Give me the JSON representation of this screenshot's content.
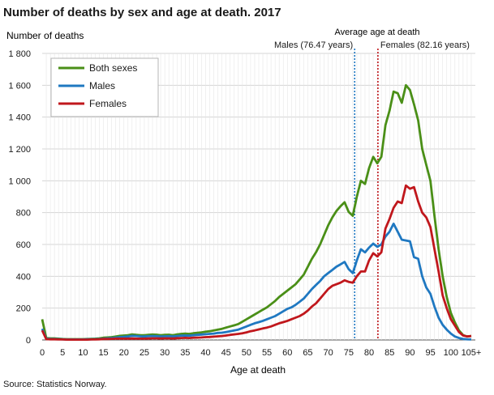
{
  "title": "Number of deaths by sex and age at death. 2017",
  "source": "Source: Statistics Norway.",
  "chart_data": {
    "type": "line",
    "title": "Number of deaths by sex and age at death. 2017",
    "ylabel": "Number of deaths",
    "xlabel": "Age at death",
    "xlim": [
      0,
      106
    ],
    "ylim": [
      0,
      1800
    ],
    "grid": true,
    "legend": "top-left",
    "x_ticks": [
      0,
      5,
      10,
      15,
      20,
      25,
      30,
      35,
      40,
      45,
      50,
      55,
      60,
      65,
      70,
      75,
      80,
      85,
      90,
      95,
      100,
      105
    ],
    "x_tick_labels": [
      "0",
      "5",
      "10",
      "15",
      "20",
      "25",
      "30",
      "35",
      "40",
      "45",
      "50",
      "55",
      "60",
      "65",
      "70",
      "75",
      "80",
      "85",
      "90",
      "95",
      "100",
      "105+"
    ],
    "y_ticks": [
      0,
      200,
      400,
      600,
      800,
      1000,
      1200,
      1400,
      1600,
      1800
    ],
    "y_tick_labels": [
      "0",
      "200",
      "400",
      "600",
      "800",
      "1 000",
      "1 200",
      "1 400",
      "1 600",
      "1 800"
    ],
    "series": [
      {
        "name": "Both sexes",
        "color": "#4a8f17",
        "points": [
          [
            0,
            130
          ],
          [
            1,
            12
          ],
          [
            2,
            10
          ],
          [
            3,
            10
          ],
          [
            4,
            8
          ],
          [
            5,
            6
          ],
          [
            6,
            5
          ],
          [
            7,
            5
          ],
          [
            8,
            5
          ],
          [
            9,
            5
          ],
          [
            10,
            5
          ],
          [
            11,
            6
          ],
          [
            12,
            7
          ],
          [
            13,
            8
          ],
          [
            14,
            10
          ],
          [
            15,
            14
          ],
          [
            16,
            16
          ],
          [
            17,
            18
          ],
          [
            18,
            22
          ],
          [
            19,
            26
          ],
          [
            20,
            28
          ],
          [
            21,
            30
          ],
          [
            22,
            35
          ],
          [
            23,
            32
          ],
          [
            24,
            30
          ],
          [
            25,
            30
          ],
          [
            26,
            32
          ],
          [
            27,
            34
          ],
          [
            28,
            33
          ],
          [
            29,
            30
          ],
          [
            30,
            32
          ],
          [
            31,
            33
          ],
          [
            32,
            30
          ],
          [
            33,
            35
          ],
          [
            34,
            38
          ],
          [
            35,
            40
          ],
          [
            36,
            38
          ],
          [
            37,
            42
          ],
          [
            38,
            45
          ],
          [
            39,
            48
          ],
          [
            40,
            52
          ],
          [
            41,
            55
          ],
          [
            42,
            60
          ],
          [
            43,
            65
          ],
          [
            44,
            70
          ],
          [
            45,
            78
          ],
          [
            46,
            85
          ],
          [
            47,
            92
          ],
          [
            48,
            100
          ],
          [
            49,
            115
          ],
          [
            50,
            130
          ],
          [
            51,
            145
          ],
          [
            52,
            160
          ],
          [
            53,
            175
          ],
          [
            54,
            190
          ],
          [
            55,
            205
          ],
          [
            56,
            225
          ],
          [
            57,
            245
          ],
          [
            58,
            270
          ],
          [
            59,
            290
          ],
          [
            60,
            310
          ],
          [
            61,
            330
          ],
          [
            62,
            350
          ],
          [
            63,
            380
          ],
          [
            64,
            410
          ],
          [
            65,
            460
          ],
          [
            66,
            510
          ],
          [
            67,
            550
          ],
          [
            68,
            600
          ],
          [
            69,
            660
          ],
          [
            70,
            720
          ],
          [
            71,
            770
          ],
          [
            72,
            810
          ],
          [
            73,
            840
          ],
          [
            74,
            865
          ],
          [
            75,
            805
          ],
          [
            76,
            780
          ],
          [
            77,
            900
          ],
          [
            78,
            1000
          ],
          [
            79,
            980
          ],
          [
            80,
            1080
          ],
          [
            81,
            1150
          ],
          [
            82,
            1110
          ],
          [
            83,
            1150
          ],
          [
            84,
            1350
          ],
          [
            85,
            1440
          ],
          [
            86,
            1560
          ],
          [
            87,
            1550
          ],
          [
            88,
            1490
          ],
          [
            89,
            1600
          ],
          [
            90,
            1570
          ],
          [
            91,
            1480
          ],
          [
            92,
            1380
          ],
          [
            93,
            1200
          ],
          [
            94,
            1100
          ],
          [
            95,
            1000
          ],
          [
            96,
            780
          ],
          [
            97,
            570
          ],
          [
            98,
            400
          ],
          [
            99,
            270
          ],
          [
            100,
            170
          ],
          [
            101,
            110
          ],
          [
            102,
            60
          ],
          [
            103,
            30
          ],
          [
            104,
            22
          ],
          [
            105,
            25
          ]
        ]
      },
      {
        "name": "Males",
        "color": "#1f78c1",
        "points": [
          [
            0,
            70
          ],
          [
            1,
            8
          ],
          [
            2,
            6
          ],
          [
            3,
            6
          ],
          [
            4,
            5
          ],
          [
            5,
            4
          ],
          [
            6,
            3
          ],
          [
            7,
            3
          ],
          [
            8,
            3
          ],
          [
            9,
            3
          ],
          [
            10,
            3
          ],
          [
            11,
            4
          ],
          [
            12,
            4
          ],
          [
            13,
            5
          ],
          [
            14,
            6
          ],
          [
            15,
            8
          ],
          [
            16,
            10
          ],
          [
            17,
            12
          ],
          [
            18,
            14
          ],
          [
            19,
            18
          ],
          [
            20,
            20
          ],
          [
            21,
            22
          ],
          [
            22,
            26
          ],
          [
            23,
            25
          ],
          [
            24,
            23
          ],
          [
            25,
            22
          ],
          [
            26,
            24
          ],
          [
            27,
            25
          ],
          [
            28,
            24
          ],
          [
            29,
            22
          ],
          [
            30,
            23
          ],
          [
            31,
            24
          ],
          [
            32,
            22
          ],
          [
            33,
            25
          ],
          [
            34,
            27
          ],
          [
            35,
            28
          ],
          [
            36,
            27
          ],
          [
            37,
            30
          ],
          [
            38,
            32
          ],
          [
            39,
            34
          ],
          [
            40,
            36
          ],
          [
            41,
            38
          ],
          [
            42,
            40
          ],
          [
            43,
            44
          ],
          [
            44,
            46
          ],
          [
            45,
            50
          ],
          [
            46,
            55
          ],
          [
            47,
            60
          ],
          [
            48,
            65
          ],
          [
            49,
            75
          ],
          [
            50,
            85
          ],
          [
            51,
            95
          ],
          [
            52,
            105
          ],
          [
            53,
            112
          ],
          [
            54,
            120
          ],
          [
            55,
            130
          ],
          [
            56,
            140
          ],
          [
            57,
            150
          ],
          [
            58,
            165
          ],
          [
            59,
            180
          ],
          [
            60,
            195
          ],
          [
            61,
            205
          ],
          [
            62,
            220
          ],
          [
            63,
            240
          ],
          [
            64,
            260
          ],
          [
            65,
            290
          ],
          [
            66,
            320
          ],
          [
            67,
            345
          ],
          [
            68,
            370
          ],
          [
            69,
            400
          ],
          [
            70,
            420
          ],
          [
            71,
            440
          ],
          [
            72,
            460
          ],
          [
            73,
            475
          ],
          [
            74,
            490
          ],
          [
            75,
            445
          ],
          [
            76,
            420
          ],
          [
            77,
            500
          ],
          [
            78,
            570
          ],
          [
            79,
            550
          ],
          [
            80,
            580
          ],
          [
            81,
            605
          ],
          [
            82,
            585
          ],
          [
            83,
            600
          ],
          [
            84,
            650
          ],
          [
            85,
            680
          ],
          [
            86,
            730
          ],
          [
            87,
            680
          ],
          [
            88,
            630
          ],
          [
            89,
            625
          ],
          [
            90,
            620
          ],
          [
            91,
            520
          ],
          [
            92,
            510
          ],
          [
            93,
            400
          ],
          [
            94,
            330
          ],
          [
            95,
            290
          ],
          [
            96,
            210
          ],
          [
            97,
            140
          ],
          [
            98,
            95
          ],
          [
            99,
            65
          ],
          [
            100,
            40
          ],
          [
            101,
            22
          ],
          [
            102,
            12
          ],
          [
            103,
            6
          ],
          [
            104,
            4
          ],
          [
            105,
            3
          ]
        ]
      },
      {
        "name": "Females",
        "color": "#c0171c",
        "points": [
          [
            0,
            60
          ],
          [
            1,
            5
          ],
          [
            2,
            4
          ],
          [
            3,
            4
          ],
          [
            4,
            3
          ],
          [
            5,
            3
          ],
          [
            6,
            2
          ],
          [
            7,
            2
          ],
          [
            8,
            2
          ],
          [
            9,
            2
          ],
          [
            10,
            2
          ],
          [
            11,
            2
          ],
          [
            12,
            3
          ],
          [
            13,
            3
          ],
          [
            14,
            4
          ],
          [
            15,
            6
          ],
          [
            16,
            6
          ],
          [
            17,
            7
          ],
          [
            18,
            8
          ],
          [
            19,
            8
          ],
          [
            20,
            8
          ],
          [
            21,
            8
          ],
          [
            22,
            9
          ],
          [
            23,
            8
          ],
          [
            24,
            8
          ],
          [
            25,
            8
          ],
          [
            26,
            9
          ],
          [
            27,
            10
          ],
          [
            28,
            10
          ],
          [
            29,
            9
          ],
          [
            30,
            10
          ],
          [
            31,
            10
          ],
          [
            32,
            9
          ],
          [
            33,
            11
          ],
          [
            34,
            12
          ],
          [
            35,
            13
          ],
          [
            36,
            12
          ],
          [
            37,
            14
          ],
          [
            38,
            15
          ],
          [
            39,
            16
          ],
          [
            40,
            18
          ],
          [
            41,
            19
          ],
          [
            42,
            21
          ],
          [
            43,
            23
          ],
          [
            44,
            25
          ],
          [
            45,
            28
          ],
          [
            46,
            32
          ],
          [
            47,
            35
          ],
          [
            48,
            38
          ],
          [
            49,
            42
          ],
          [
            50,
            48
          ],
          [
            51,
            55
          ],
          [
            52,
            60
          ],
          [
            53,
            66
          ],
          [
            54,
            72
          ],
          [
            55,
            78
          ],
          [
            56,
            85
          ],
          [
            57,
            95
          ],
          [
            58,
            105
          ],
          [
            59,
            112
          ],
          [
            60,
            120
          ],
          [
            61,
            130
          ],
          [
            62,
            140
          ],
          [
            63,
            150
          ],
          [
            64,
            165
          ],
          [
            65,
            185
          ],
          [
            66,
            210
          ],
          [
            67,
            230
          ],
          [
            68,
            260
          ],
          [
            69,
            290
          ],
          [
            70,
            320
          ],
          [
            71,
            340
          ],
          [
            72,
            350
          ],
          [
            73,
            360
          ],
          [
            74,
            375
          ],
          [
            75,
            365
          ],
          [
            76,
            360
          ],
          [
            77,
            400
          ],
          [
            78,
            430
          ],
          [
            79,
            430
          ],
          [
            80,
            500
          ],
          [
            81,
            545
          ],
          [
            82,
            525
          ],
          [
            83,
            550
          ],
          [
            84,
            700
          ],
          [
            85,
            760
          ],
          [
            86,
            830
          ],
          [
            87,
            870
          ],
          [
            88,
            860
          ],
          [
            89,
            970
          ],
          [
            90,
            950
          ],
          [
            91,
            960
          ],
          [
            92,
            870
          ],
          [
            93,
            800
          ],
          [
            94,
            770
          ],
          [
            95,
            710
          ],
          [
            96,
            570
          ],
          [
            97,
            430
          ],
          [
            98,
            280
          ],
          [
            99,
            200
          ],
          [
            100,
            130
          ],
          [
            101,
            90
          ],
          [
            102,
            50
          ],
          [
            103,
            28
          ],
          [
            104,
            22
          ],
          [
            105,
            25
          ]
        ]
      }
    ],
    "reference_lines": [
      {
        "x": 76.47,
        "color": "#1f78c1",
        "label": "Males (76.47 years)"
      },
      {
        "x": 82.16,
        "color": "#c0171c",
        "label": "Females (82.16 years)"
      }
    ],
    "reference_heading": "Average age at death"
  }
}
